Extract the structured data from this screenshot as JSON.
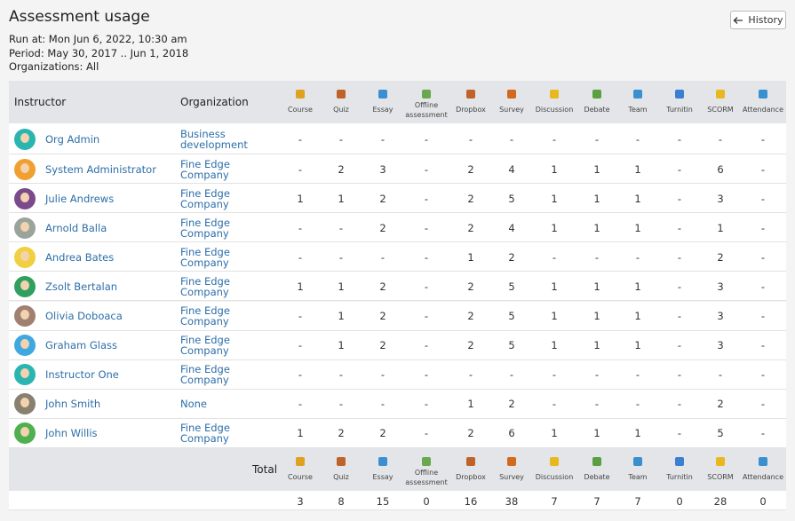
{
  "header": {
    "title": "Assessment usage",
    "history_button": "History",
    "run_at": "Run at: Mon Jun 6, 2022, 10:30 am",
    "period": "Period: May 30, 2017 .. Jun 1, 2018",
    "organizations": "Organizations: All"
  },
  "table": {
    "columns": [
      "Instructor",
      "Organization",
      "Course",
      "Quiz",
      "Essay",
      "Offline assessment",
      "Dropbox",
      "Survey",
      "Discussion",
      "Debate",
      "Team",
      "Turnitin",
      "SCORM",
      "Attendance"
    ],
    "rows": [
      [
        "Org Admin",
        "Business development",
        "-",
        "-",
        "-",
        "-",
        "-",
        "-",
        "-",
        "-",
        "-",
        "-",
        "-",
        "-"
      ],
      [
        "System Administrator",
        "Fine Edge Company",
        "-",
        2,
        3,
        "-",
        2,
        4,
        1,
        1,
        1,
        "-",
        6,
        "-"
      ],
      [
        "Julie Andrews",
        "Fine Edge Company",
        1,
        1,
        2,
        "-",
        2,
        5,
        1,
        1,
        1,
        "-",
        3,
        "-"
      ],
      [
        "Arnold Balla",
        "Fine Edge Company",
        "-",
        "-",
        2,
        "-",
        2,
        4,
        1,
        1,
        1,
        "-",
        1,
        "-"
      ],
      [
        "Andrea Bates",
        "Fine Edge Company",
        "-",
        "-",
        "-",
        "-",
        1,
        2,
        "-",
        "-",
        "-",
        "-",
        2,
        "-"
      ],
      [
        "Zsolt Bertalan",
        "Fine Edge Company",
        1,
        1,
        2,
        "-",
        2,
        5,
        1,
        1,
        1,
        "-",
        3,
        "-"
      ],
      [
        "Olivia Doboaca",
        "Fine Edge Company",
        "-",
        1,
        2,
        "-",
        2,
        5,
        1,
        1,
        1,
        "-",
        3,
        "-"
      ],
      [
        "Graham Glass",
        "Fine Edge Company",
        "-",
        1,
        2,
        "-",
        2,
        5,
        1,
        1,
        1,
        "-",
        3,
        "-"
      ],
      [
        "Instructor One",
        "Fine Edge Company",
        "-",
        "-",
        "-",
        "-",
        "-",
        "-",
        "-",
        "-",
        "-",
        "-",
        "-",
        "-"
      ],
      [
        "John Smith",
        "None",
        "-",
        "-",
        "-",
        "-",
        1,
        2,
        "-",
        "-",
        "-",
        "-",
        2,
        "-"
      ],
      [
        "John Willis",
        "Fine Edge Company",
        1,
        2,
        2,
        "-",
        2,
        6,
        1,
        1,
        1,
        "-",
        5,
        "-"
      ]
    ],
    "total_label": "Total",
    "totals": [
      3,
      8,
      15,
      0,
      16,
      38,
      7,
      7,
      7,
      0,
      28,
      0
    ]
  }
}
